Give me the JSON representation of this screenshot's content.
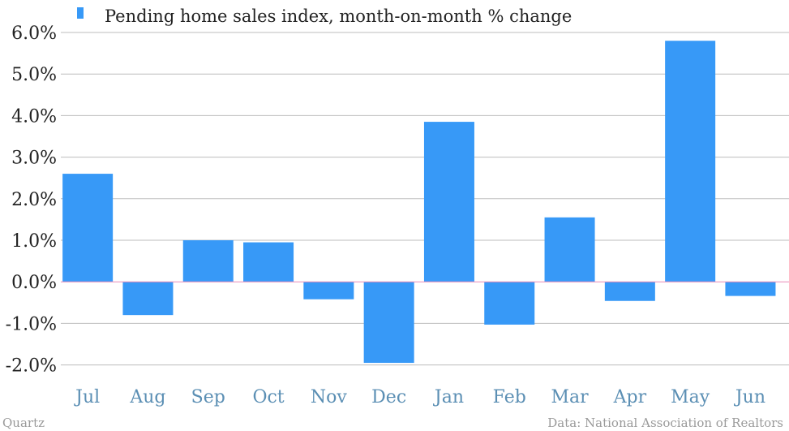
{
  "chart_data": {
    "type": "bar",
    "categories": [
      "Jul",
      "Aug",
      "Sep",
      "Oct",
      "Nov",
      "Dec",
      "Jan",
      "Feb",
      "Mar",
      "Apr",
      "May",
      "Jun"
    ],
    "series": [
      {
        "name": "Pending home sales index, month-on-month % change",
        "values": [
          2.6,
          -0.8,
          1.0,
          0.95,
          -0.42,
          -1.95,
          3.85,
          -1.03,
          1.55,
          -0.46,
          5.8,
          -0.34
        ],
        "color": "#3799F7"
      }
    ],
    "ylim": [
      -2.2,
      6.2
    ],
    "yticks": [
      6,
      5,
      4,
      3,
      2,
      1,
      0,
      -1,
      -2
    ],
    "ytick_labels": [
      "6.0%",
      "5.0%",
      "4.0%",
      "3.0%",
      "2.0%",
      "1.0%",
      "0.0%",
      "-1.0%",
      "-2.0%"
    ],
    "grid": true,
    "legend_position": "top-left",
    "zero_line_color": "#E88AB8",
    "gridline_color": "#BDBDBD",
    "tick_label_color": "#222222",
    "category_label_color": "#5B8FB4"
  },
  "footer": {
    "source_left": "Quartz",
    "source_right": "Data: National Association of Realtors"
  }
}
